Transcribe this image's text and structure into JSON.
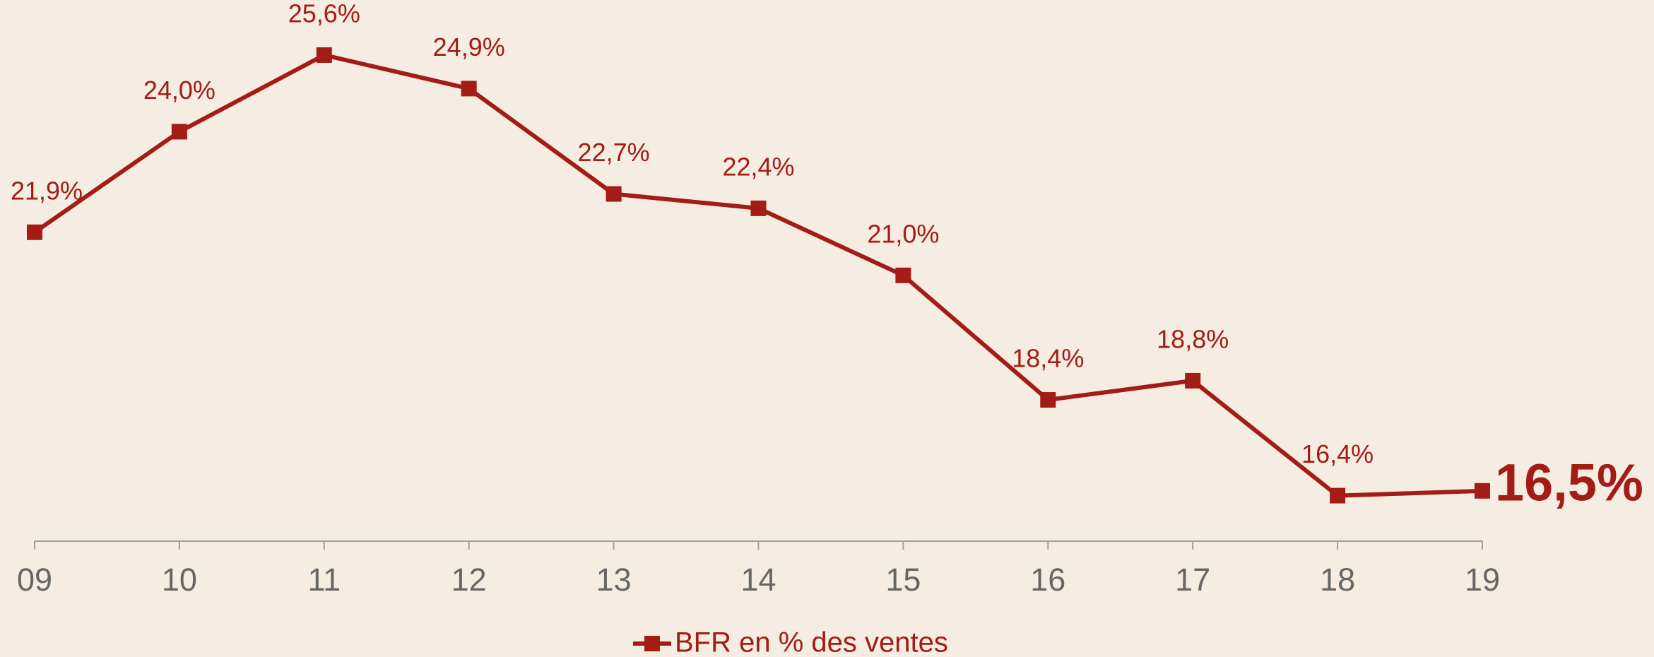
{
  "chart_data": {
    "type": "line",
    "categories": [
      "09",
      "10",
      "11",
      "12",
      "13",
      "14",
      "15",
      "16",
      "17",
      "18",
      "19"
    ],
    "series": [
      {
        "name": "BFR en % des ventes",
        "color": "#a31c16",
        "values": [
          21.9,
          24.0,
          25.6,
          24.9,
          22.7,
          22.4,
          21.0,
          18.4,
          18.8,
          16.4,
          16.5
        ],
        "value_labels": [
          "21,9%",
          "24,0%",
          "25,6%",
          "24,9%",
          "22,7%",
          "22,4%",
          "21,0%",
          "18,4%",
          "18,8%",
          "16,4%",
          "16,5%"
        ]
      }
    ],
    "ylim": [
      15.45,
      26.75
    ],
    "legend": "bottom"
  }
}
